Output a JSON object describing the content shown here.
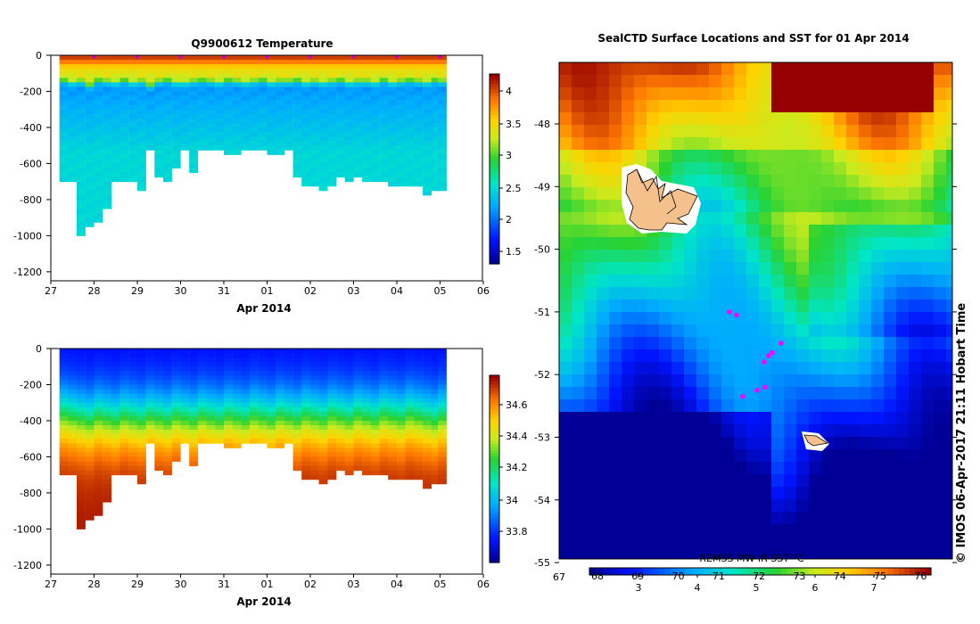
{
  "chart_data": [
    {
      "type": "heatmap",
      "title": "Q9900612  Temperature",
      "xlabel": "Apr 2014",
      "x_ticks": [
        "27",
        "28",
        "29",
        "30",
        "31",
        "01",
        "02",
        "03",
        "04",
        "05",
        "06"
      ],
      "y_ticks": [
        "0",
        "-200",
        "-400",
        "-600",
        "-800",
        "-1000",
        "-1200"
      ],
      "ylim": [
        -1250,
        0
      ],
      "colorbar": {
        "ticks": [
          "4",
          "3.5",
          "3",
          "2.5",
          "2",
          "1.5"
        ],
        "range": [
          1.3,
          4.2
        ]
      },
      "profiles": {
        "x": [
          27.3,
          27.5,
          27.7,
          27.9,
          28.1,
          28.3,
          28.5,
          28.7,
          28.9,
          29.1,
          29.3,
          29.5,
          29.7,
          29.9,
          30.1,
          30.3,
          30.5,
          30.7,
          30.9,
          31.1,
          31.3,
          31.5,
          31.7,
          31.9,
          32.1,
          32.3,
          32.5,
          32.7,
          32.9,
          33.1,
          33.3,
          33.5,
          33.7,
          33.9,
          34.1,
          34.3,
          34.5,
          34.7,
          34.9,
          35.1,
          35.3,
          35.5,
          35.7,
          35.9,
          36.05
        ],
        "max_depth": [
          700,
          700,
          990,
          940,
          910,
          840,
          700,
          700,
          700,
          730,
          510,
          670,
          690,
          620,
          510,
          630,
          510,
          510,
          510,
          530,
          530,
          510,
          510,
          510,
          540,
          550,
          510,
          670,
          710,
          710,
          730,
          710,
          670,
          690,
          670,
          700,
          700,
          700,
          720,
          720,
          720,
          720,
          760,
          740,
          740
        ],
        "surface_temp": 4.0,
        "thermocline_depth": [
          130,
          150,
          140,
          160,
          130,
          140,
          150,
          130,
          150,
          140,
          160,
          140,
          130,
          150,
          150,
          140,
          130,
          140,
          150,
          130,
          140,
          150,
          140,
          130,
          150,
          140,
          140,
          130,
          150,
          140,
          150,
          140,
          130,
          150,
          140,
          140,
          150,
          130,
          150,
          140,
          130,
          140,
          150,
          130,
          140
        ],
        "deep_temp": 2.2
      },
      "float_markers_x": [
        28,
        29,
        30,
        31,
        32,
        33,
        34,
        35,
        36
      ]
    },
    {
      "type": "heatmap",
      "title": "",
      "xlabel": "Apr 2014",
      "x_ticks": [
        "27",
        "28",
        "29",
        "30",
        "31",
        "01",
        "02",
        "03",
        "04",
        "05",
        "06"
      ],
      "y_ticks": [
        "0",
        "-200",
        "-400",
        "-600",
        "-800",
        "-1000",
        "-1200"
      ],
      "ylim": [
        -1250,
        0
      ],
      "colorbar": {
        "ticks": [
          "34.6",
          "34.4",
          "34.2",
          "34",
          "33.8"
        ],
        "range": [
          33.65,
          34.78
        ]
      },
      "profiles": {
        "surface_salinity": 33.75,
        "halocline_center_depth": 370,
        "deep_salinity": 34.75
      }
    },
    {
      "type": "heatmap",
      "title": "SealCTD Surface Locations and SST for 01 Apr 2014",
      "y_ticks": [
        "-48",
        "-49",
        "-50",
        "-51",
        "-52",
        "-53",
        "-54",
        "-55"
      ],
      "ylim": [
        -55.1,
        -47.0
      ],
      "x_left_label": "67",
      "colorbar": {
        "top_ticks": [
          "68",
          "69",
          "70",
          "71",
          "72",
          "73",
          "74",
          "75",
          "76"
        ],
        "bottom_ticks": [
          "3",
          "4",
          "5",
          "6",
          "7"
        ],
        "label": "REMSS MW-IR SST °C",
        "range": [
          2.2,
          8.0
        ]
      },
      "markers": "SealCTD surface locations (magenta)",
      "land": "Kerguelen Islands; Heard Island"
    }
  ],
  "footer": {
    "copyright": "© IMOS 06-Apr-2017 21:11 Hobart Time"
  }
}
